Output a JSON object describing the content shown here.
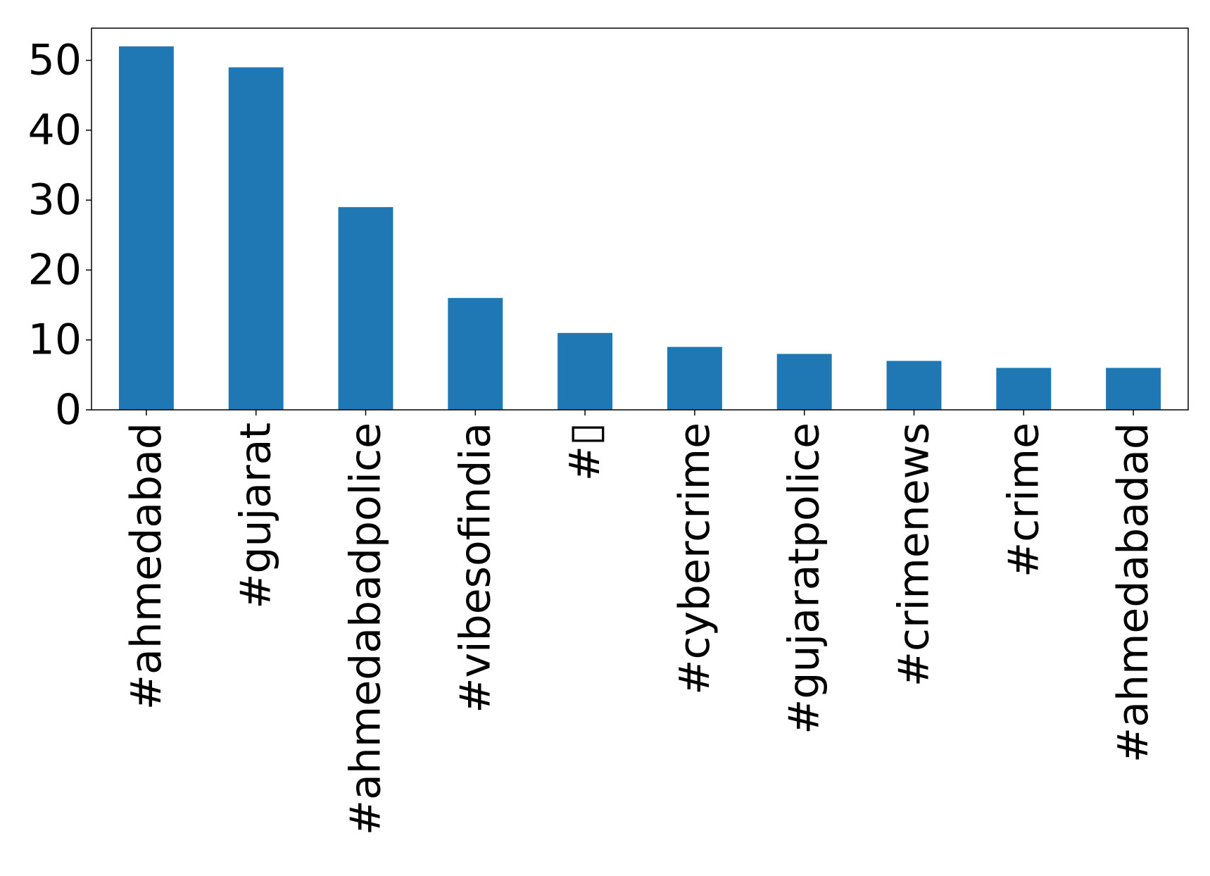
{
  "chart_data": {
    "type": "bar",
    "title": "",
    "xlabel": "",
    "ylabel": "",
    "categories": [
      "#ahmedabad",
      "#gujarat",
      "#ahmedabadpolice",
      "#vibesofindia",
      "#▯",
      "#cybercrime",
      "#gujaratpolice",
      "#crimenews",
      "#crime",
      "#ahmedabadad"
    ],
    "values": [
      52,
      49,
      29,
      16,
      11,
      9,
      8,
      7,
      6,
      6
    ],
    "ylim": [
      0,
      54.6
    ],
    "yticks": [
      0,
      10,
      20,
      30,
      40,
      50
    ],
    "grid": false,
    "legend": "none",
    "colors": {
      "bar": "#1f77b4",
      "axis": "#000000"
    }
  }
}
